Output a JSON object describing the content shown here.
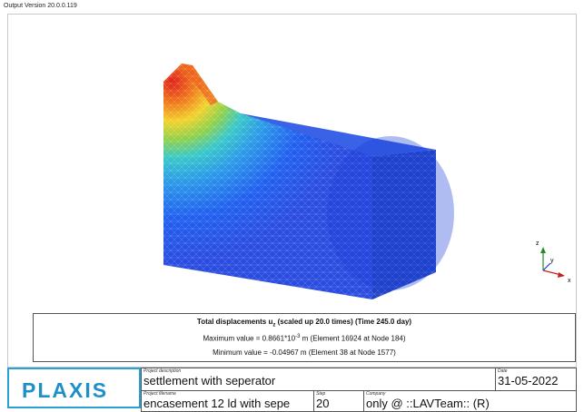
{
  "header": {
    "version": "Output Version 20.0.0.119"
  },
  "caption": {
    "title": "Total displacements u",
    "title_subscript": "z",
    "title_suffix": " (scaled up 20.0 times) (Time 245.0 day)",
    "maximum": "Maximum value = 0.8661*10",
    "maximum_exponent": "-3",
    "maximum_suffix": " m (Element 16924 at Node 184)",
    "minimum": "Minimum value = -0.04967 m (Element 38 at Node 1577)"
  },
  "axes": {
    "z": "z",
    "y": "y",
    "x": "x"
  },
  "title_block": {
    "logo": "PLAXIS",
    "project_description": {
      "label": "Project description",
      "value": "settlement with seperator"
    },
    "date": {
      "label": "Date",
      "value": "31-05-2022"
    },
    "project_filename": {
      "label": "Project filename",
      "value": "encasement 12 ld with sepe"
    },
    "step": {
      "label": "Step",
      "value": "20"
    },
    "company": {
      "label": "Company",
      "value": "only @ ::LAVTeam:: (R)"
    }
  }
}
